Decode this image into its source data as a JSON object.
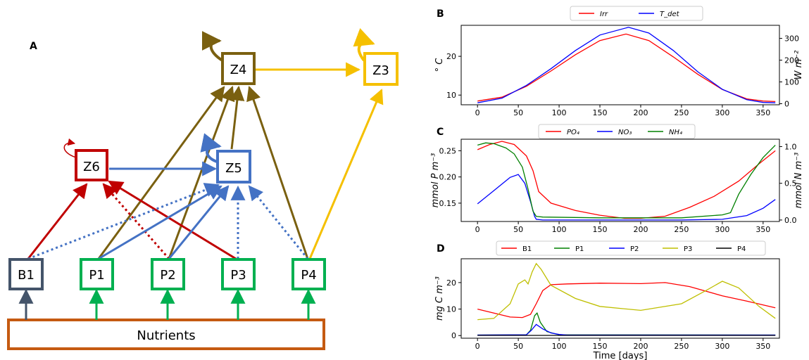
{
  "colors": {
    "Z4": "#7a6010",
    "Z3": "#f5c000",
    "Z6": "#c00000",
    "Z5": "#4472c4",
    "B1": "#44546a",
    "P": "#00b050",
    "nutrients": "#c55a11",
    "irr": "#ff0000",
    "tdet": "#0000ff",
    "po4": "#ff0000",
    "no3": "#0000ff",
    "nh4": "#008000",
    "b1": "#ff0000",
    "p1": "#008000",
    "p2": "#0000ff",
    "p3": "#bfbf00",
    "p4": "#000000"
  },
  "diagram": {
    "letter": "A",
    "nodes": [
      {
        "id": "Z4",
        "label": "Z4"
      },
      {
        "id": "Z3",
        "label": "Z3"
      },
      {
        "id": "Z6",
        "label": "Z6"
      },
      {
        "id": "Z5",
        "label": "Z5"
      },
      {
        "id": "B1",
        "label": "B1"
      },
      {
        "id": "P1",
        "label": "P1"
      },
      {
        "id": "P2",
        "label": "P2"
      },
      {
        "id": "P3",
        "label": "P3"
      },
      {
        "id": "P4",
        "label": "P4"
      }
    ],
    "nutrients_label": "Nutrients"
  },
  "chart_data": [
    {
      "panel": "B",
      "type": "line",
      "xlim": [
        -20,
        370
      ],
      "xticks": [
        0,
        50,
        100,
        150,
        200,
        250,
        300,
        350
      ],
      "ylabel": "° C",
      "ylim": [
        7.5,
        28
      ],
      "yticks": [
        10,
        20
      ],
      "ylabel_right": "W m⁻²",
      "ylim_right": [
        -5,
        360
      ],
      "yticks_right": [
        0,
        100,
        200,
        300
      ],
      "legend": [
        "Irr",
        "T_det"
      ],
      "series": [
        {
          "name": "Irr",
          "axis": "right",
          "x": [
            0,
            30,
            60,
            90,
            120,
            150,
            182,
            210,
            240,
            270,
            300,
            330,
            350,
            365
          ],
          "y": [
            12,
            30,
            80,
            150,
            225,
            290,
            320,
            290,
            215,
            135,
            65,
            22,
            12,
            10
          ]
        },
        {
          "name": "T_det",
          "axis": "left",
          "x": [
            0,
            30,
            60,
            90,
            120,
            150,
            185,
            210,
            240,
            270,
            300,
            330,
            350,
            365
          ],
          "y": [
            8,
            9.2,
            12.5,
            16.8,
            21.5,
            25.5,
            27.5,
            26,
            21.5,
            16,
            11.5,
            8.8,
            8.1,
            8
          ]
        }
      ]
    },
    {
      "panel": "C",
      "type": "line",
      "xlim": [
        -20,
        370
      ],
      "xticks": [
        0,
        50,
        100,
        150,
        200,
        250,
        300,
        350
      ],
      "ylabel": "mmol P m⁻³",
      "ylim": [
        0.115,
        0.272
      ],
      "yticks": [
        0.15,
        0.2,
        0.25
      ],
      "ylabel_right": "mmol N m⁻³",
      "ylim_right": [
        -0.02,
        1.1
      ],
      "yticks_right": [
        0.0,
        0.5,
        1.0
      ],
      "legend": [
        "PO₄",
        "NO₃",
        "NH₄"
      ],
      "series": [
        {
          "name": "PO₄",
          "axis": "left",
          "x": [
            0,
            15,
            30,
            45,
            60,
            68,
            75,
            90,
            120,
            150,
            180,
            200,
            230,
            260,
            290,
            320,
            345,
            365
          ],
          "y": [
            0.252,
            0.262,
            0.268,
            0.262,
            0.24,
            0.212,
            0.172,
            0.15,
            0.136,
            0.127,
            0.121,
            0.121,
            0.125,
            0.142,
            0.163,
            0.192,
            0.225,
            0.25
          ]
        },
        {
          "name": "NO₃",
          "axis": "right",
          "x": [
            0,
            20,
            40,
            50,
            58,
            65,
            70,
            72,
            80,
            150,
            250,
            300,
            330,
            350,
            365
          ],
          "y": [
            0.22,
            0.4,
            0.58,
            0.62,
            0.5,
            0.25,
            0.05,
            0.01,
            0.0,
            0.0,
            0.0,
            0.01,
            0.06,
            0.16,
            0.28
          ]
        },
        {
          "name": "NH₄",
          "axis": "right",
          "x": [
            0,
            10,
            20,
            35,
            45,
            55,
            62,
            68,
            72,
            80,
            150,
            250,
            300,
            310,
            320,
            335,
            350,
            365
          ],
          "y": [
            1.02,
            1.05,
            1.04,
            0.98,
            0.9,
            0.72,
            0.42,
            0.12,
            0.05,
            0.04,
            0.03,
            0.03,
            0.07,
            0.1,
            0.35,
            0.62,
            0.85,
            1.02
          ]
        }
      ]
    },
    {
      "panel": "D",
      "type": "line",
      "xlim": [
        -20,
        370
      ],
      "xticks": [
        0,
        50,
        100,
        150,
        200,
        250,
        300,
        350
      ],
      "xlabel": "Time [days]",
      "ylabel": "mg C m⁻³",
      "ylim": [
        -1,
        29
      ],
      "yticks": [
        0,
        10,
        20
      ],
      "legend": [
        "B1",
        "P1",
        "P2",
        "P3",
        "P4"
      ],
      "series": [
        {
          "name": "B1",
          "x": [
            0,
            20,
            40,
            55,
            65,
            72,
            80,
            90,
            110,
            150,
            200,
            230,
            260,
            300,
            330,
            365
          ],
          "y": [
            10,
            8.5,
            7,
            6.8,
            8,
            12,
            17,
            19.2,
            19.5,
            19.8,
            19.6,
            20,
            18.5,
            15,
            13,
            10.5
          ]
        },
        {
          "name": "P1",
          "x": [
            0,
            60,
            65,
            70,
            73,
            77,
            85,
            100,
            365
          ],
          "y": [
            0.2,
            0.3,
            2,
            7.5,
            8.5,
            5,
            1.5,
            0.3,
            0.2
          ]
        },
        {
          "name": "P2",
          "x": [
            0,
            60,
            66,
            72,
            80,
            90,
            100,
            110,
            365
          ],
          "y": [
            0.2,
            0.3,
            2,
            4.2,
            2.5,
            1,
            0.4,
            0.2,
            0.2
          ]
        },
        {
          "name": "P3",
          "x": [
            0,
            20,
            40,
            50,
            58,
            62,
            67,
            72,
            78,
            90,
            120,
            150,
            200,
            250,
            280,
            300,
            320,
            345,
            365
          ],
          "y": [
            6,
            6.5,
            12,
            19.5,
            21,
            19.5,
            24,
            27.2,
            25,
            19,
            14,
            11,
            9.5,
            12,
            17,
            20.5,
            18,
            11,
            6.5
          ]
        },
        {
          "name": "P4",
          "x": [
            0,
            365
          ],
          "y": [
            0.05,
            0.05
          ]
        }
      ]
    }
  ]
}
